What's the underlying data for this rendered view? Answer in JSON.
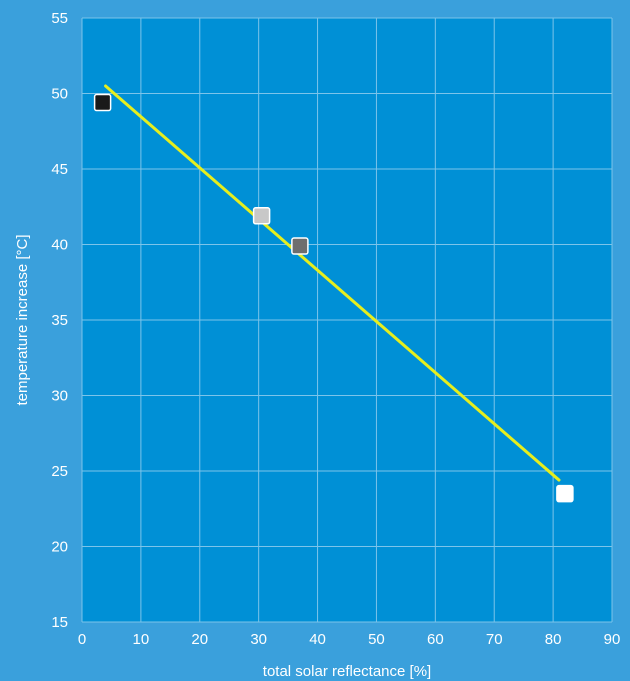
{
  "chart_data": {
    "type": "scatter",
    "title": "",
    "xlabel": "total solar reflectance [%]",
    "ylabel": "temperature increase [°C]",
    "xlim": [
      0,
      90
    ],
    "ylim": [
      15,
      55
    ],
    "x_ticks": [
      0,
      10,
      20,
      30,
      40,
      50,
      60,
      70,
      80,
      90
    ],
    "y_ticks": [
      15,
      20,
      25,
      30,
      35,
      40,
      45,
      50,
      55
    ],
    "grid": true,
    "points": [
      {
        "x": 3.5,
        "y": 49.4,
        "color": "#1a1a1a"
      },
      {
        "x": 30.5,
        "y": 41.9,
        "color": "#c8c8c8"
      },
      {
        "x": 37.0,
        "y": 39.9,
        "color": "#6e6e6e"
      },
      {
        "x": 82.0,
        "y": 23.5,
        "color": "#ffffff"
      }
    ],
    "trendline": {
      "x": [
        4.0,
        81.0
      ],
      "y": [
        50.5,
        24.4
      ],
      "color": "#e6ee1e"
    }
  },
  "colors": {
    "background": "#3aa0dc",
    "plot_area": "#0090d6",
    "grid": "#7cc4ea"
  }
}
